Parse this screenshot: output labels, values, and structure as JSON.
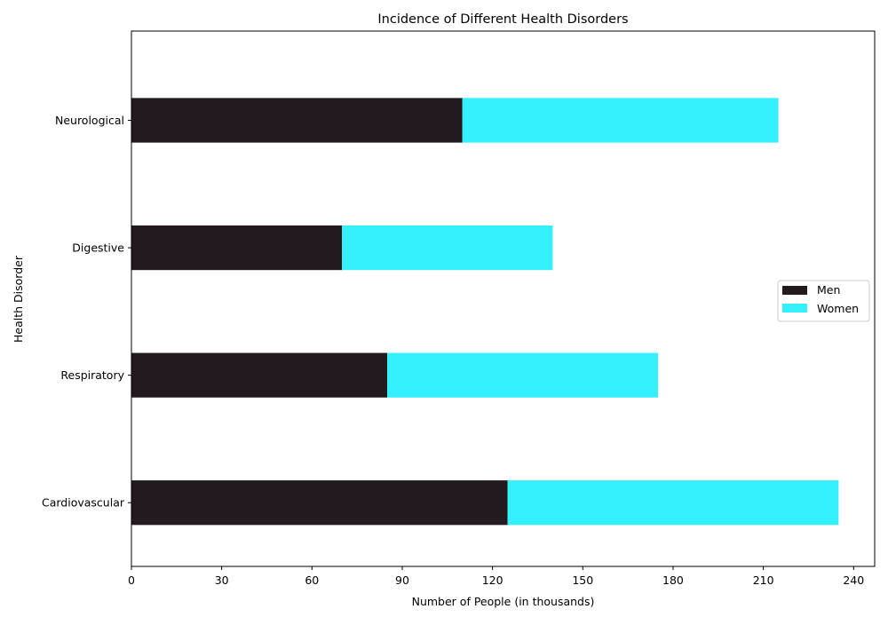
{
  "chart_data": {
    "type": "bar",
    "orientation": "horizontal",
    "stacked": true,
    "title": "Incidence of Different Health Disorders",
    "xlabel": "Number of People (in thousands)",
    "ylabel": "Health Disorder",
    "categories": [
      "Cardiovascular",
      "Respiratory",
      "Digestive",
      "Neurological"
    ],
    "series": [
      {
        "name": "Men",
        "values": [
          125,
          85,
          70,
          110
        ],
        "color": "#231a20"
      },
      {
        "name": "Women",
        "values": [
          110,
          90,
          70,
          105
        ],
        "color": "#33f0fc"
      }
    ],
    "xlim": [
      0,
      247
    ],
    "xticks": [
      0,
      30,
      60,
      90,
      120,
      150,
      180,
      210,
      240
    ],
    "grid": false,
    "legend_position": "center-right"
  }
}
